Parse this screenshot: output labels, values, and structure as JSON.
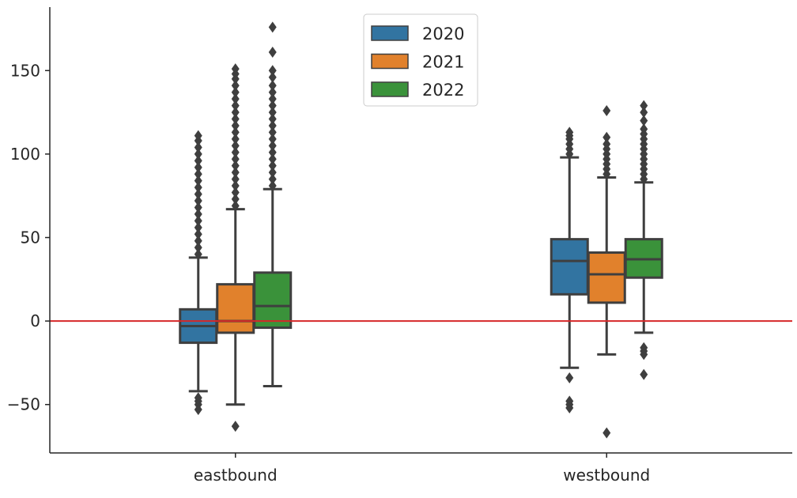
{
  "chart_data": {
    "type": "box",
    "title": "",
    "xlabel": "",
    "ylabel": "",
    "categories": [
      "eastbound",
      "westbound"
    ],
    "ylim": [
      -79,
      188
    ],
    "yticks": [
      -50,
      0,
      50,
      100,
      150
    ],
    "ytick_labels": [
      "−50",
      "0",
      "50",
      "100",
      "150"
    ],
    "grid": false,
    "legend_position": "top-center",
    "reference_line": {
      "y": 0,
      "color": "#d62728"
    },
    "series": [
      {
        "name": "2020",
        "color": "#3274a1",
        "boxes": [
          {
            "q1": -13,
            "median": -3,
            "q3": 7,
            "whisker_low": -42,
            "whisker_high": 38,
            "outliers": [
              40,
              44,
              48,
              52,
              56,
              60,
              64,
              68,
              72,
              76,
              80,
              84,
              88,
              92,
              96,
              100,
              104,
              108,
              111,
              -46,
              -48,
              -50,
              -53
            ]
          },
          {
            "q1": 16,
            "median": 36,
            "q3": 49,
            "whisker_low": -28,
            "whisker_high": 98,
            "outliers": [
              100,
              103,
              106,
              109,
              111,
              113,
              -34,
              -48,
              -50,
              -52
            ]
          }
        ]
      },
      {
        "name": "2021",
        "color": "#e1812c",
        "boxes": [
          {
            "q1": -7,
            "median": 0,
            "q3": 22,
            "whisker_low": -50,
            "whisker_high": 67,
            "outliers": [
              69,
              73,
              77,
              81,
              85,
              89,
              93,
              97,
              101,
              105,
              109,
              113,
              117,
              121,
              125,
              129,
              133,
              137,
              141,
              145,
              148,
              151,
              -63
            ]
          },
          {
            "q1": 11,
            "median": 28,
            "q3": 41,
            "whisker_low": -20,
            "whisker_high": 86,
            "outliers": [
              88,
              91,
              94,
              97,
              100,
              103,
              106,
              110,
              126,
              -67
            ]
          }
        ]
      },
      {
        "name": "2022",
        "color": "#3a923a",
        "boxes": [
          {
            "q1": -4,
            "median": 9,
            "q3": 29,
            "whisker_low": -39,
            "whisker_high": 79,
            "outliers": [
              81,
              85,
              89,
              93,
              97,
              101,
              105,
              109,
              113,
              117,
              121,
              125,
              129,
              133,
              137,
              141,
              146,
              150,
              161,
              176
            ]
          },
          {
            "q1": 26,
            "median": 37,
            "q3": 49,
            "whisker_low": -7,
            "whisker_high": 83,
            "outliers": [
              85,
              88,
              91,
              94,
              97,
              100,
              103,
              106,
              109,
              112,
              115,
              120,
              125,
              129,
              -16,
              -18,
              -20,
              -32
            ]
          }
        ]
      }
    ]
  }
}
